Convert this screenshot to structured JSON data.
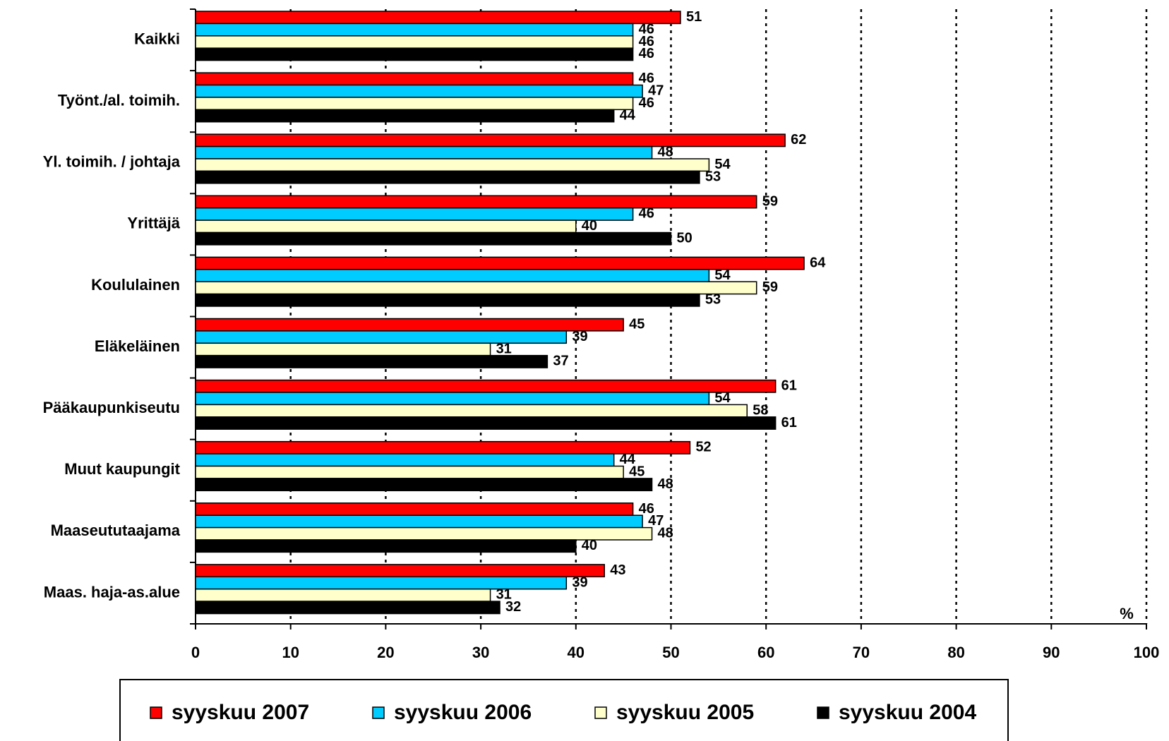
{
  "chart_data": {
    "type": "bar",
    "orientation": "horizontal",
    "categories": [
      "Kaikki",
      "Työnt./al. toimih.",
      "Yl. toimih. / johtaja",
      "Yrittäjä",
      "Koululainen",
      "Eläkeläinen",
      "Pääkaupunkiseutu",
      "Muut kaupungit",
      "Maaseututaajama",
      "Maas. haja-as.alue"
    ],
    "series": [
      {
        "name": "syyskuu 2007",
        "color": "#ff0000",
        "values": [
          51,
          46,
          62,
          59,
          64,
          45,
          61,
          52,
          46,
          43
        ]
      },
      {
        "name": "syyskuu 2006",
        "color": "#00ccff",
        "values": [
          46,
          47,
          48,
          46,
          54,
          39,
          54,
          44,
          47,
          39
        ]
      },
      {
        "name": "syyskuu 2005",
        "color": "#ffffcc",
        "values": [
          46,
          46,
          54,
          40,
          59,
          31,
          58,
          45,
          48,
          31
        ]
      },
      {
        "name": "syyskuu 2004",
        "color": "#000000",
        "values": [
          46,
          44,
          53,
          50,
          53,
          37,
          61,
          48,
          40,
          32
        ]
      }
    ],
    "x_label": "%",
    "xlim": [
      0,
      100
    ],
    "xticks": [
      0,
      10,
      20,
      30,
      40,
      50,
      60,
      70,
      80,
      90,
      100
    ],
    "grid": true,
    "legend": "bottom"
  }
}
